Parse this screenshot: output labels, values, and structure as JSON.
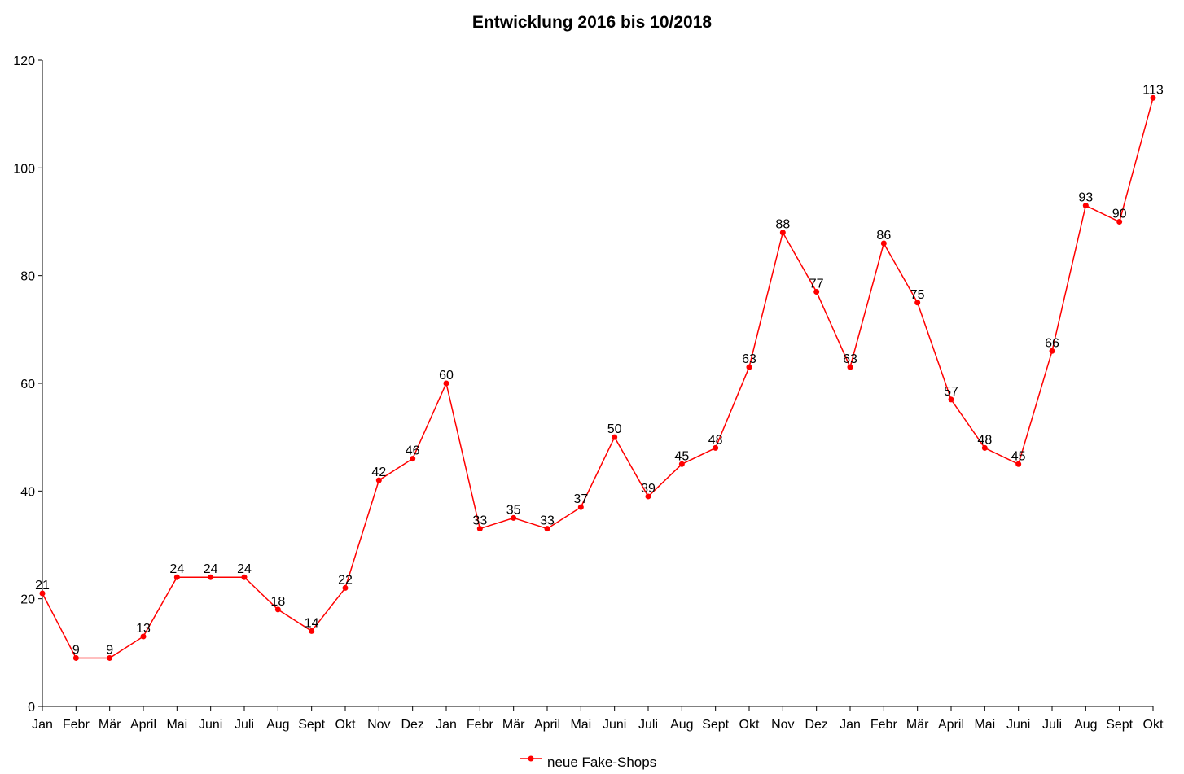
{
  "chart_data": {
    "type": "line",
    "title": "Entwicklung 2016 bis 10/2018",
    "xlabel": "",
    "ylabel": "",
    "ylim": [
      0,
      120
    ],
    "yticks": [
      0,
      20,
      40,
      60,
      80,
      100,
      120
    ],
    "grid": false,
    "legend_position": "bottom",
    "categories": [
      "Jan",
      "Febr",
      "Mär",
      "April",
      "Mai",
      "Juni",
      "Juli",
      "Aug",
      "Sept",
      "Okt",
      "Nov",
      "Dez",
      "Jan",
      "Febr",
      "Mär",
      "April",
      "Mai",
      "Juni",
      "Juli",
      "Aug",
      "Sept",
      "Okt",
      "Nov",
      "Dez",
      "Jan",
      "Febr",
      "Mär",
      "April",
      "Mai",
      "Juni",
      "Juli",
      "Aug",
      "Sept",
      "Okt"
    ],
    "series": [
      {
        "name": "neue Fake-Shops",
        "color": "#ff0000",
        "values": [
          21,
          9,
          9,
          13,
          24,
          24,
          24,
          18,
          14,
          22,
          42,
          46,
          60,
          33,
          35,
          33,
          37,
          50,
          39,
          45,
          48,
          63,
          88,
          77,
          63,
          86,
          75,
          57,
          48,
          45,
          66,
          93,
          90,
          113
        ]
      }
    ]
  }
}
